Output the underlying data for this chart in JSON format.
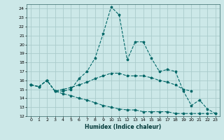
{
  "xlabel": "Humidex (Indice chaleur)",
  "background_color": "#cce8e8",
  "grid_color": "#aacccc",
  "line_color": "#006868",
  "xlim": [
    -0.5,
    23.5
  ],
  "ylim": [
    12,
    24.5
  ],
  "yticks": [
    12,
    13,
    14,
    15,
    16,
    17,
    18,
    19,
    20,
    21,
    22,
    23,
    24
  ],
  "xticks": [
    0,
    1,
    2,
    3,
    4,
    5,
    6,
    7,
    8,
    9,
    10,
    11,
    12,
    13,
    14,
    15,
    16,
    17,
    18,
    19,
    20,
    21,
    22,
    23
  ],
  "series": [
    {
      "x": [
        0,
        1,
        2,
        3,
        4,
        5,
        6,
        7,
        8,
        9,
        10,
        11,
        12,
        13,
        14,
        15,
        16,
        17,
        18,
        19,
        20,
        21,
        22,
        23
      ],
      "y": [
        15.5,
        15.3,
        16.0,
        14.8,
        14.8,
        15.0,
        16.2,
        17.0,
        18.5,
        21.2,
        24.2,
        23.3,
        18.3,
        20.3,
        20.3,
        18.5,
        17.0,
        17.2,
        17.0,
        14.8,
        13.2,
        13.8,
        12.8,
        12.3
      ]
    },
    {
      "x": [
        0,
        1,
        2,
        3,
        4,
        5,
        6,
        7,
        8,
        9,
        10,
        11,
        12,
        13,
        14,
        15,
        16,
        17,
        18,
        19,
        20
      ],
      "y": [
        15.5,
        15.3,
        16.0,
        14.8,
        15.0,
        15.2,
        15.5,
        15.8,
        16.2,
        16.5,
        16.8,
        16.8,
        16.5,
        16.5,
        16.5,
        16.3,
        16.0,
        15.8,
        15.5,
        15.0,
        14.8
      ]
    },
    {
      "x": [
        0,
        1,
        2,
        3,
        4,
        5,
        6,
        7,
        8,
        9,
        10,
        11,
        12,
        13,
        14,
        15,
        16,
        17,
        18,
        19,
        20,
        21,
        22,
        23
      ],
      "y": [
        15.5,
        15.3,
        16.0,
        14.8,
        14.5,
        14.3,
        14.0,
        13.8,
        13.5,
        13.2,
        13.0,
        12.8,
        12.7,
        12.7,
        12.5,
        12.5,
        12.5,
        12.5,
        12.3,
        12.3,
        12.3,
        12.3,
        12.3,
        12.3
      ]
    }
  ]
}
